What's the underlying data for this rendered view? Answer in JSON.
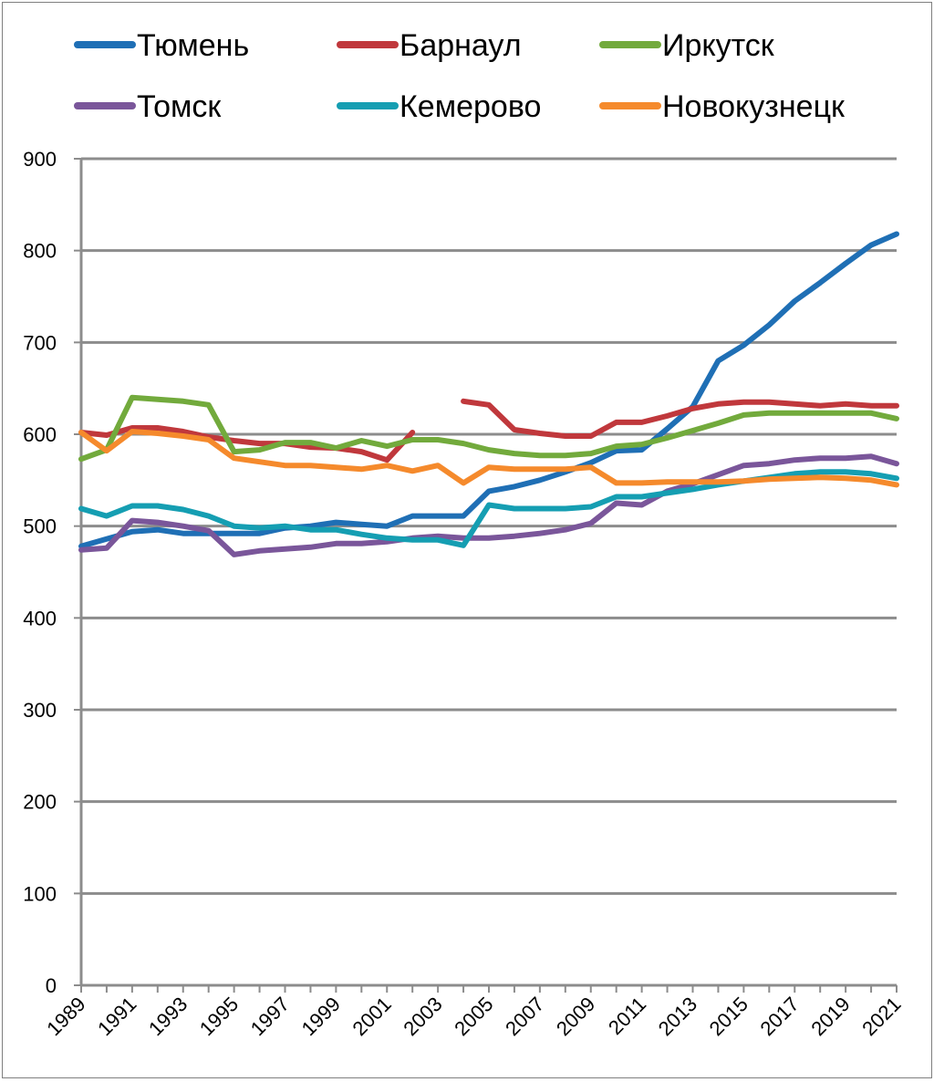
{
  "chart_data": {
    "type": "line",
    "title": "",
    "xlabel": "",
    "ylabel": "",
    "ylim": [
      0,
      900
    ],
    "yticks": [
      "0",
      "100",
      "200",
      "300",
      "400",
      "500",
      "600",
      "700",
      "800",
      "900"
    ],
    "xticks": [
      "1989",
      "1991",
      "1993",
      "1995",
      "1997",
      "1999",
      "2001",
      "2003",
      "2005",
      "2007",
      "2009",
      "2011",
      "2013",
      "2015",
      "2017",
      "2019",
      "2021"
    ],
    "grid": "horizontal",
    "legend_position": "top",
    "x": [
      1989,
      1990,
      1991,
      1992,
      1993,
      1994,
      1995,
      1996,
      1997,
      1998,
      1999,
      2000,
      2001,
      2002,
      2003,
      2004,
      2005,
      2006,
      2007,
      2008,
      2009,
      2010,
      2011,
      2012,
      2013,
      2014,
      2015,
      2016,
      2017,
      2018,
      2019,
      2020,
      2021
    ],
    "series": [
      {
        "name": "Тюмень",
        "color": "#1f6fb5",
        "values": [
          478,
          486,
          494,
          496,
          492,
          492,
          492,
          492,
          498,
          500,
          504,
          502,
          500,
          511,
          511,
          511,
          538,
          543,
          550,
          559,
          569,
          582,
          583,
          606,
          630,
          680,
          697,
          719,
          745,
          765,
          786,
          806,
          818
        ]
      },
      {
        "name": "Барнаул",
        "color": "#c0383c",
        "values": [
          602,
          599,
          607,
          607,
          603,
          597,
          593,
          590,
          590,
          586,
          585,
          581,
          572,
          602,
          null,
          636,
          632,
          605,
          601,
          598,
          598,
          613,
          613,
          620,
          628,
          633,
          635,
          635,
          633,
          631,
          633,
          631,
          631
        ]
      },
      {
        "name": "Иркутск",
        "color": "#72aa3c",
        "values": [
          573,
          583,
          640,
          638,
          636,
          632,
          581,
          583,
          591,
          591,
          585,
          593,
          587,
          594,
          594,
          590,
          583,
          579,
          577,
          577,
          579,
          587,
          589,
          596,
          604,
          612,
          621,
          623,
          623,
          623,
          623,
          623,
          617
        ]
      },
      {
        "name": "Томск",
        "color": "#7a569a",
        "values": [
          474,
          476,
          506,
          504,
          500,
          495,
          469,
          473,
          475,
          477,
          481,
          481,
          483,
          487,
          489,
          487,
          487,
          489,
          492,
          496,
          503,
          525,
          523,
          538,
          546,
          556,
          566,
          568,
          572,
          574,
          574,
          576,
          568
        ]
      },
      {
        "name": "Кемерово",
        "color": "#159eb2",
        "values": [
          519,
          511,
          522,
          522,
          518,
          511,
          500,
          498,
          500,
          496,
          496,
          491,
          487,
          485,
          485,
          479,
          523,
          519,
          519,
          519,
          521,
          532,
          532,
          536,
          540,
          545,
          549,
          553,
          557,
          559,
          559,
          557,
          552
        ]
      },
      {
        "name": "Новокузнецк",
        "color": "#f58a2c",
        "values": [
          602,
          582,
          603,
          601,
          598,
          594,
          574,
          570,
          566,
          566,
          564,
          562,
          566,
          560,
          566,
          547,
          564,
          562,
          562,
          562,
          564,
          547,
          547,
          548,
          548,
          548,
          549,
          551,
          552,
          553,
          552,
          550,
          545
        ]
      }
    ]
  }
}
